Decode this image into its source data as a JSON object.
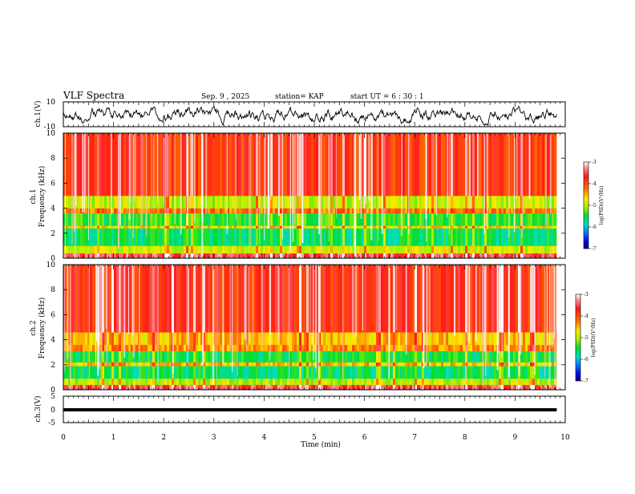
{
  "header": {
    "title": "VLF Spectra",
    "date": "Sep. 9 , 2025",
    "station": "station= KAP",
    "start": "start  UT =   6 : 30 : 1"
  },
  "chart_data": [
    {
      "type": "line",
      "name": "ch1-waveform",
      "ylabel": "ch.1(V)",
      "ylim": [
        -10,
        10
      ],
      "ytick_labels": [
        "10",
        "-10"
      ],
      "description_values": "oscillating signal roughly between -8 and 5 V"
    },
    {
      "type": "heatmap",
      "name": "ch1-spectrogram",
      "ylabel": "ch.1\nFrequency (kHz)",
      "ylabel_lines": [
        "ch.1",
        "Frequency (kHz)"
      ],
      "ylim": [
        0,
        10
      ],
      "ytick_labels": [
        "0",
        "2",
        "4",
        "6",
        "8",
        "10"
      ],
      "bands": [
        {
          "from": 0.0,
          "to": 0.4,
          "level": -3.5
        },
        {
          "from": 0.4,
          "to": 1.0,
          "level": -4.8
        },
        {
          "from": 1.0,
          "to": 2.4,
          "level": -5.6
        },
        {
          "from": 2.4,
          "to": 2.6,
          "level": -4.6
        },
        {
          "from": 2.6,
          "to": 3.6,
          "level": -5.4
        },
        {
          "from": 3.6,
          "to": 4.0,
          "level": -4.2
        },
        {
          "from": 4.0,
          "to": 5.0,
          "level": -4.9
        },
        {
          "from": 5.0,
          "to": 10.0,
          "level": -3.9
        }
      ]
    },
    {
      "type": "heatmap",
      "name": "ch2-spectrogram",
      "ylabel": "ch.2\nFrequency (kHz)",
      "ylabel_lines": [
        "ch.2",
        "Frequency (kHz)"
      ],
      "ylim": [
        0,
        10
      ],
      "ytick_labels": [
        "0",
        "2",
        "4",
        "6",
        "8",
        "10"
      ],
      "bands": [
        {
          "from": 0.0,
          "to": 0.4,
          "level": -3.5
        },
        {
          "from": 0.4,
          "to": 0.9,
          "level": -4.9
        },
        {
          "from": 0.9,
          "to": 1.9,
          "level": -5.6
        },
        {
          "from": 1.9,
          "to": 2.2,
          "level": -4.5
        },
        {
          "from": 2.2,
          "to": 3.1,
          "level": -5.5
        },
        {
          "from": 3.1,
          "to": 3.6,
          "level": -4.3
        },
        {
          "from": 3.6,
          "to": 4.6,
          "level": -4.5
        },
        {
          "from": 4.6,
          "to": 10.0,
          "level": -3.8
        }
      ]
    },
    {
      "type": "line",
      "name": "ch3-waveform",
      "ylabel": "ch.3(V)",
      "ylim": [
        -5,
        5
      ],
      "ytick_labels": [
        "5",
        "0",
        "-5"
      ],
      "description_values": "near-constant signal around 0 V"
    }
  ],
  "xaxis": {
    "label": "Time (min)",
    "xlim": [
      0,
      10
    ],
    "data_end": 9.83,
    "tick_labels": [
      "0",
      "1",
      "2",
      "3",
      "4",
      "5",
      "6",
      "7",
      "8",
      "9",
      "10"
    ]
  },
  "colorbar": {
    "label": "log(PSD)(V²/Hz)",
    "range": [
      -7,
      -3
    ],
    "tick_labels": [
      "-3",
      "-4",
      "-5",
      "-6",
      "-7"
    ]
  },
  "colors": {
    "background": "#ffffff",
    "axis": "#000000"
  }
}
